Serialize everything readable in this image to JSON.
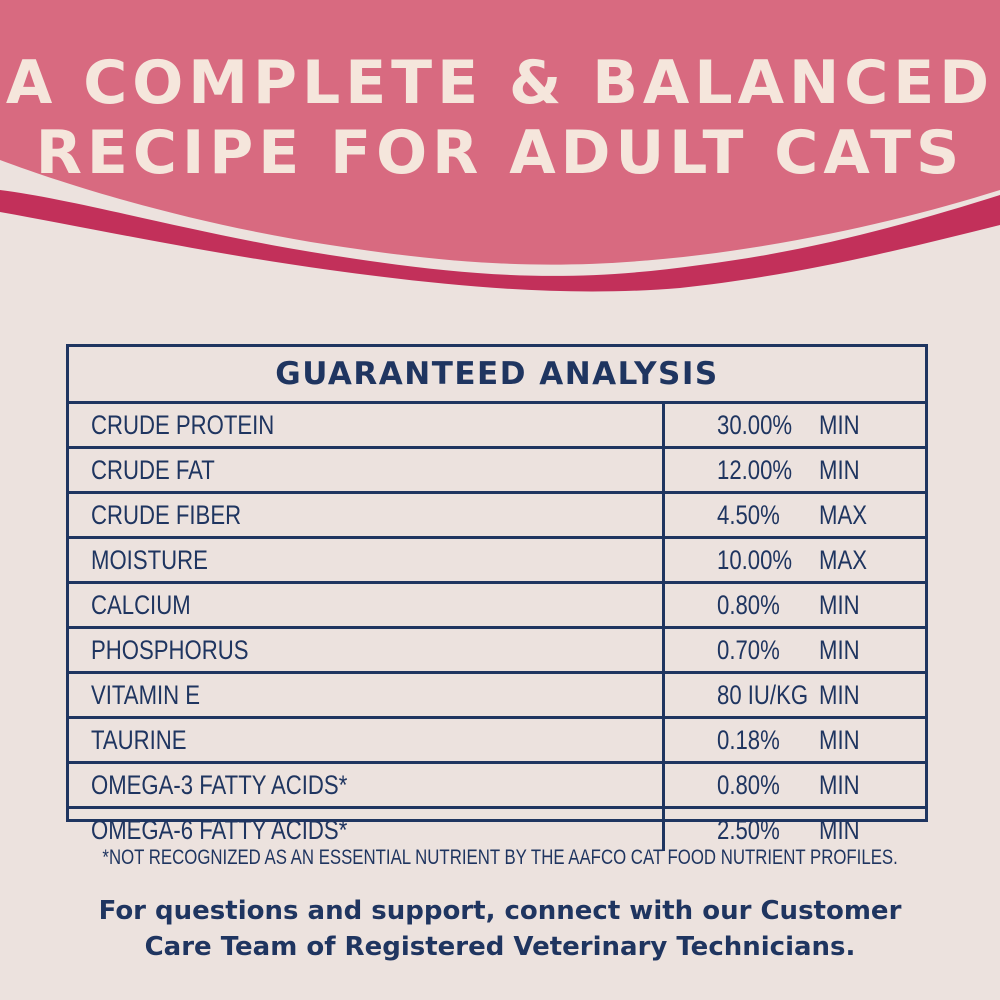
{
  "colors": {
    "banner": "#d86a80",
    "stroke": "#c2305a",
    "background": "#ece2de",
    "navy": "#1f3560",
    "headline": "#f5e6dc"
  },
  "headline": {
    "line1": "A COMPLETE & BALANCED",
    "line2": "RECIPE FOR ADULT CATS"
  },
  "table": {
    "title": "GUARANTEED ANALYSIS",
    "rows": [
      {
        "name": "CRUDE PROTEIN",
        "value": "30.00%",
        "qualifier": "MIN"
      },
      {
        "name": "CRUDE FAT",
        "value": "12.00%",
        "qualifier": "MIN"
      },
      {
        "name": "CRUDE FIBER",
        "value": "4.50%",
        "qualifier": "MAX"
      },
      {
        "name": "MOISTURE",
        "value": "10.00%",
        "qualifier": "MAX"
      },
      {
        "name": "CALCIUM",
        "value": "0.80%",
        "qualifier": "MIN"
      },
      {
        "name": "PHOSPHORUS",
        "value": "0.70%",
        "qualifier": "MIN"
      },
      {
        "name": "VITAMIN E",
        "value": "80 IU/KG",
        "qualifier": "MIN"
      },
      {
        "name": "TAURINE",
        "value": "0.18%",
        "qualifier": "MIN"
      },
      {
        "name": "OMEGA-3 FATTY ACIDS*",
        "value": "0.80%",
        "qualifier": "MIN"
      },
      {
        "name": "OMEGA-6 FATTY ACIDS*",
        "value": "2.50%",
        "qualifier": "MIN"
      }
    ]
  },
  "footnote": "*NOT RECOGNIZED AS AN ESSENTIAL NUTRIENT BY THE AAFCO CAT FOOD NUTRIENT PROFILES.",
  "support": {
    "line1": "For questions and support, connect with our Customer",
    "line2": "Care Team of Registered Veterinary Technicians."
  }
}
